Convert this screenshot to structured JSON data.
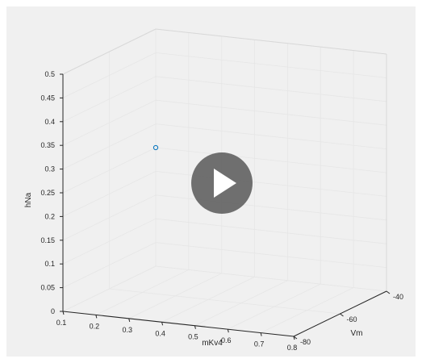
{
  "player": {
    "play_button_icon": "play-icon"
  },
  "chart_data": {
    "type": "scatter",
    "title": "",
    "xlabel": "mKv4",
    "ylabel": "Vm",
    "zlabel": "hNa",
    "xlim": [
      0.1,
      0.8
    ],
    "ylim": [
      -80,
      -40
    ],
    "zlim": [
      0,
      0.5
    ],
    "xticks": [
      "0.1",
      "0.2",
      "0.3",
      "0.4",
      "0.5",
      "0.6",
      "0.7",
      "0.8"
    ],
    "yticks": [
      "-80",
      "-60",
      "-40"
    ],
    "zticks": [
      "0",
      "0.05",
      "0.1",
      "0.15",
      "0.2",
      "0.25",
      "0.3",
      "0.35",
      "0.4",
      "0.45",
      "0.5"
    ],
    "grid": true,
    "points": [
      {
        "x": 0.1,
        "y": -40,
        "z": 0.25,
        "marker": "circle",
        "color": "#0072BD"
      }
    ]
  }
}
